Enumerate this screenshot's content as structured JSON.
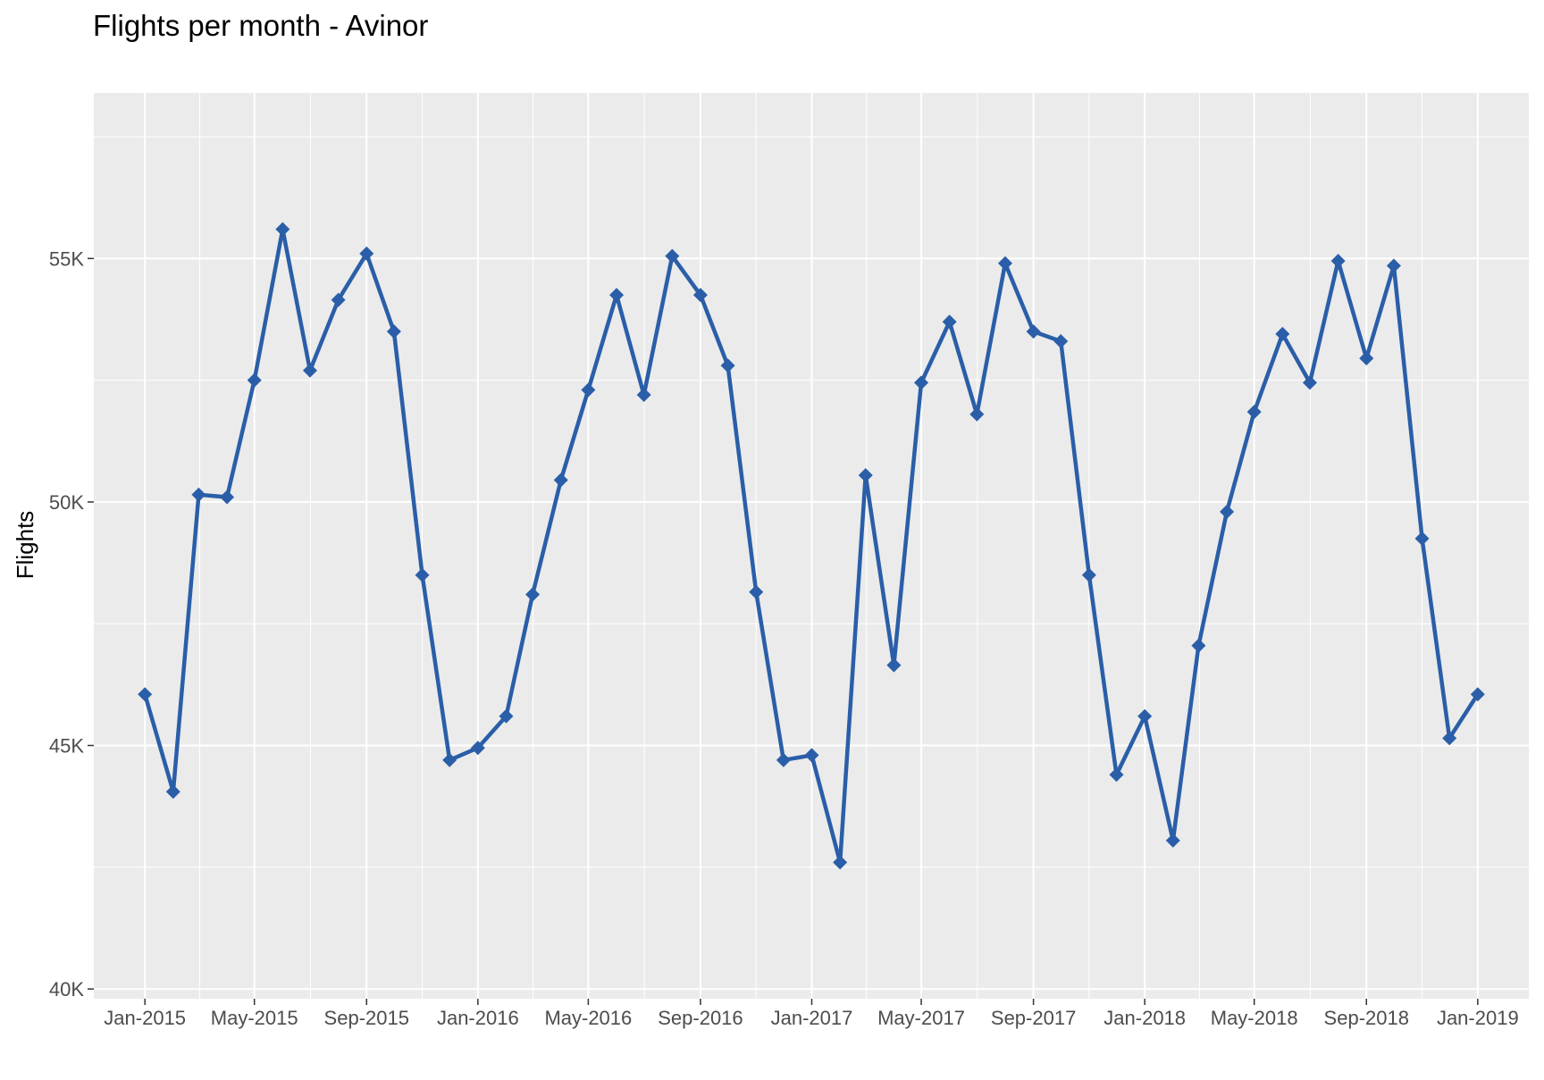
{
  "chart_data": {
    "type": "line",
    "title": "Flights per month - Avinor",
    "xlabel": "",
    "ylabel": "Flights",
    "ylim": [
      39800,
      58400
    ],
    "xlim": [
      "2014-11-06",
      "2019-02-26"
    ],
    "grid": true,
    "legend": "none",
    "colors": {
      "line": "#2a5ea8",
      "panel": "#ebebeb",
      "grid": "#ffffff"
    },
    "y_ticks": [
      {
        "value": 40000,
        "label": "40K"
      },
      {
        "value": 45000,
        "label": "45K"
      },
      {
        "value": 50000,
        "label": "50K"
      },
      {
        "value": 55000,
        "label": "55K"
      }
    ],
    "x_ticks": [
      {
        "date": "2015-01-01",
        "label": "Jan-2015"
      },
      {
        "date": "2015-05-01",
        "label": "May-2015"
      },
      {
        "date": "2015-09-01",
        "label": "Sep-2015"
      },
      {
        "date": "2016-01-01",
        "label": "Jan-2016"
      },
      {
        "date": "2016-05-01",
        "label": "May-2016"
      },
      {
        "date": "2016-09-01",
        "label": "Sep-2016"
      },
      {
        "date": "2017-01-01",
        "label": "Jan-2017"
      },
      {
        "date": "2017-05-01",
        "label": "May-2017"
      },
      {
        "date": "2017-09-01",
        "label": "Sep-2017"
      },
      {
        "date": "2018-01-01",
        "label": "Jan-2018"
      },
      {
        "date": "2018-05-01",
        "label": "May-2018"
      },
      {
        "date": "2018-09-01",
        "label": "Sep-2018"
      },
      {
        "date": "2019-01-01",
        "label": "Jan-2019"
      }
    ],
    "x": [
      "2015-01-01",
      "2015-02-01",
      "2015-03-01",
      "2015-04-01",
      "2015-05-01",
      "2015-06-01",
      "2015-07-01",
      "2015-08-01",
      "2015-09-01",
      "2015-10-01",
      "2015-11-01",
      "2015-12-01",
      "2016-01-01",
      "2016-02-01",
      "2016-03-01",
      "2016-04-01",
      "2016-05-01",
      "2016-06-01",
      "2016-07-01",
      "2016-08-01",
      "2016-09-01",
      "2016-10-01",
      "2016-11-01",
      "2016-12-01",
      "2017-01-01",
      "2017-02-01",
      "2017-03-01",
      "2017-04-01",
      "2017-05-01",
      "2017-06-01",
      "2017-07-01",
      "2017-08-01",
      "2017-09-01",
      "2017-10-01",
      "2017-11-01",
      "2017-12-01",
      "2018-01-01",
      "2018-02-01",
      "2018-03-01",
      "2018-04-01",
      "2018-05-01",
      "2018-06-01",
      "2018-07-01",
      "2018-08-01",
      "2018-09-01",
      "2018-10-01",
      "2018-11-01",
      "2018-12-01",
      "2019-01-01"
    ],
    "series": [
      {
        "values": [
          46050,
          44050,
          50150,
          50100,
          52500,
          55600,
          52700,
          54150,
          55100,
          53500,
          48500,
          44700,
          44950,
          45600,
          48100,
          50450,
          52300,
          54250,
          52200,
          55050,
          54250,
          52800,
          48150,
          44700,
          44800,
          42600,
          50550,
          46650,
          52450,
          53700,
          51800,
          54900,
          53500,
          53300,
          48500,
          44400,
          45600,
          43050,
          47050,
          49800,
          51850,
          53450,
          52450,
          54950,
          52950,
          54850,
          49250,
          45150,
          46050
        ]
      }
    ]
  }
}
